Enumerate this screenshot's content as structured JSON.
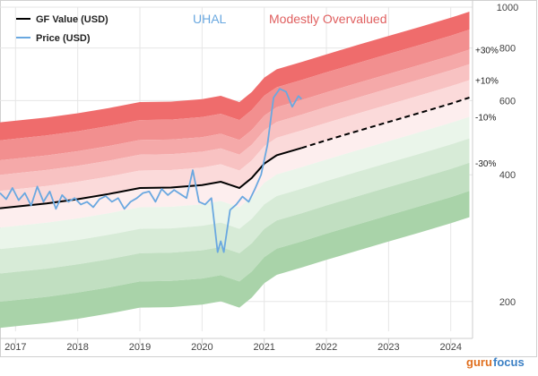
{
  "chart_data": {
    "type": "area",
    "title": "UHAL",
    "subtitle": "Modestly Overvalued",
    "y_scale": "log",
    "ylim": [
      170,
      1000
    ],
    "y_ticks": [
      1000,
      800,
      600,
      400,
      200
    ],
    "xlim": [
      2016.75,
      2024.35
    ],
    "x_ticks": [
      "2017",
      "2018",
      "2019",
      "2020",
      "2021",
      "2022",
      "2023",
      "2024"
    ],
    "legend": {
      "placement": "top-left",
      "entries": [
        "GF Value (USD)",
        "Price (USD)"
      ]
    },
    "band_labels": [
      "+30%",
      "+10%",
      "-10%",
      "-30%"
    ],
    "series": [
      {
        "name": "GF Value (USD)",
        "x": [
          2016.75,
          2017.5,
          2018.0,
          2018.5,
          2019.0,
          2019.5,
          2020.0,
          2020.3,
          2020.6,
          2020.8,
          2021.0,
          2021.2,
          2021.6
        ],
        "values": [
          333,
          342,
          350,
          360,
          372,
          373,
          378,
          385,
          372,
          393,
          425,
          445,
          463
        ]
      },
      {
        "name": "GF Value projection",
        "x": [
          2021.6,
          2022.0,
          2022.5,
          2023.0,
          2023.5,
          2024.0,
          2024.3
        ],
        "values": [
          463,
          483,
          508,
          534,
          561,
          590,
          610
        ]
      },
      {
        "name": "Price (USD)",
        "x": [
          2016.75,
          2016.85,
          2016.95,
          2017.05,
          2017.15,
          2017.25,
          2017.35,
          2017.45,
          2017.55,
          2017.65,
          2017.75,
          2017.85,
          2017.95,
          2018.05,
          2018.15,
          2018.25,
          2018.35,
          2018.45,
          2018.55,
          2018.65,
          2018.75,
          2018.85,
          2018.95,
          2019.05,
          2019.15,
          2019.25,
          2019.35,
          2019.45,
          2019.55,
          2019.65,
          2019.75,
          2019.85,
          2019.95,
          2020.05,
          2020.15,
          2020.2,
          2020.25,
          2020.3,
          2020.35,
          2020.45,
          2020.55,
          2020.65,
          2020.75,
          2020.85,
          2020.95,
          2021.05,
          2021.15,
          2021.25,
          2021.35,
          2021.45,
          2021.55,
          2021.6
        ],
        "values": [
          362,
          350,
          372,
          348,
          362,
          338,
          375,
          345,
          365,
          332,
          358,
          345,
          352,
          340,
          345,
          335,
          350,
          356,
          345,
          352,
          332,
          345,
          352,
          362,
          365,
          345,
          370,
          358,
          368,
          360,
          352,
          410,
          345,
          340,
          352,
          305,
          262,
          278,
          262,
          330,
          340,
          355,
          345,
          370,
          400,
          470,
          610,
          640,
          630,
          580,
          615,
          605
        ]
      }
    ],
    "bands": {
      "x": [
        2016.75,
        2017.5,
        2018.0,
        2018.5,
        2019.0,
        2019.5,
        2020.0,
        2020.3,
        2020.6,
        2020.8,
        2021.0,
        2021.2,
        2021.6,
        2022.0,
        2022.5,
        2023.0,
        2023.5,
        2024.0,
        2024.3
      ],
      "multipliers": [
        1.6,
        1.45,
        1.3,
        1.2,
        1.1,
        1.0,
        0.9,
        0.8,
        0.7,
        0.6,
        0.52
      ],
      "colors": [
        "#ef6c6c",
        "#f28f8f",
        "#f5a9a9",
        "#f8c2c2",
        "#fbdada",
        "#fdeeee",
        "#eaf5ea",
        "#d7ebd7",
        "#c1dfc1",
        "#a9d3a9",
        "#8fc68f"
      ]
    }
  },
  "colors": {
    "title": "#6aa8e0",
    "subtitle": "#e06060",
    "gf_value": "#000000",
    "price": "#6aa8e0",
    "watermark_guru": "#e07020",
    "watermark_focus": "#3a7fc4"
  },
  "watermark": {
    "guru": "guru",
    "focus": "focus"
  }
}
